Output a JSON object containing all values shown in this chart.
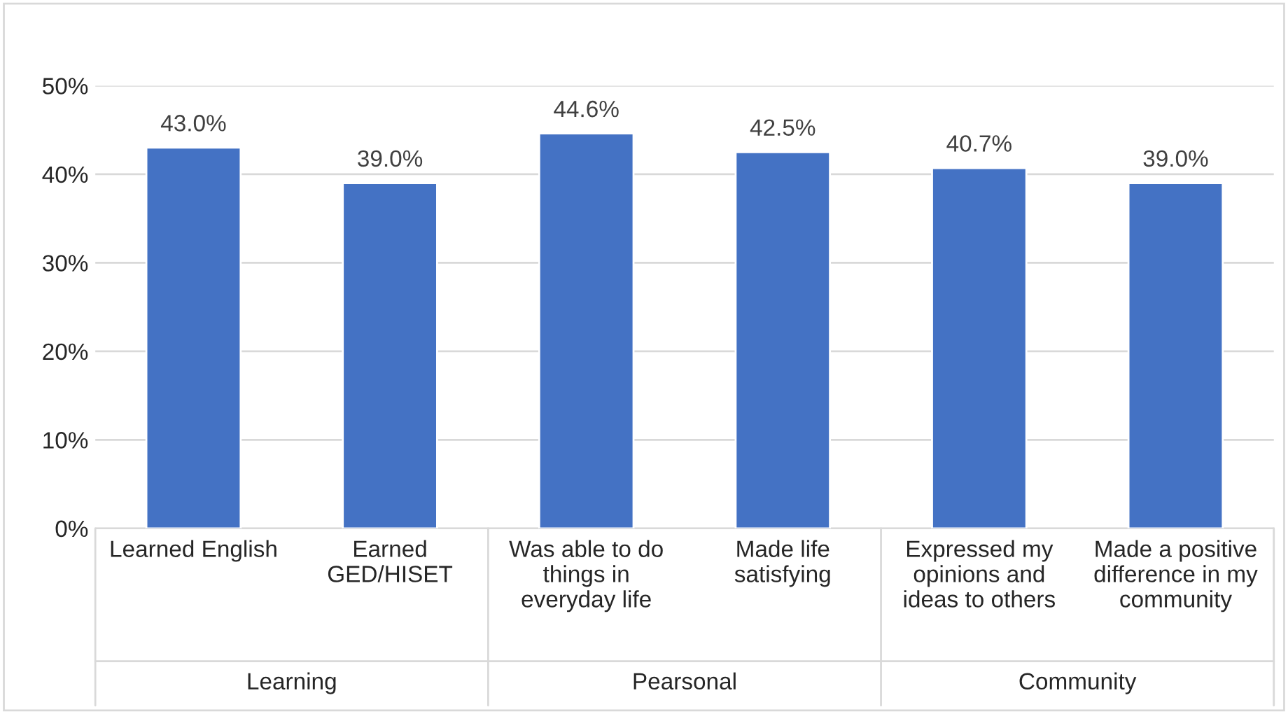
{
  "chart_data": {
    "type": "bar",
    "categories": [
      "Learned English",
      "Earned\nGED/HISET",
      "Was able to do\nthings in\neveryday life",
      "Made life\nsatisfying",
      "Expressed my\nopinions and\nideas to others",
      "Made a positive\ndifference in my\ncommunity"
    ],
    "values": [
      43.0,
      39.0,
      44.6,
      42.5,
      40.7,
      39.0
    ],
    "value_labels": [
      "43.0%",
      "39.0%",
      "44.6%",
      "42.5%",
      "40.7%",
      "39.0%"
    ],
    "color": "#4472c4",
    "ylim": [
      0,
      50
    ],
    "yticks": [
      {
        "value": 0,
        "label": "0%"
      },
      {
        "value": 10,
        "label": "10%"
      },
      {
        "value": 20,
        "label": "20%"
      },
      {
        "value": 30,
        "label": "30%"
      },
      {
        "value": 40,
        "label": "40%"
      },
      {
        "value": 50,
        "label": "50%"
      }
    ],
    "grid": "y",
    "annotations": [
      "Learning",
      "Pearsonal",
      "Community"
    ]
  }
}
